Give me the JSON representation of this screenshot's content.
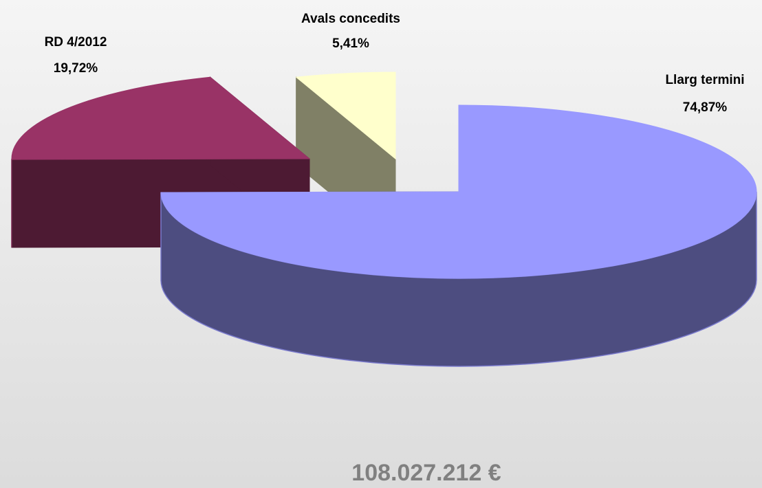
{
  "chart_data": {
    "type": "pie",
    "categories": [
      "Llarg termini",
      "RD 4/2012",
      "Avals concedits"
    ],
    "values": [
      74.87,
      19.72,
      5.41
    ],
    "value_labels": [
      "74,87%",
      "19,72%",
      "5,41%"
    ],
    "colors": [
      "#9999ff",
      "#993366",
      "#ffffcc"
    ],
    "total": "108.027.212 €"
  }
}
